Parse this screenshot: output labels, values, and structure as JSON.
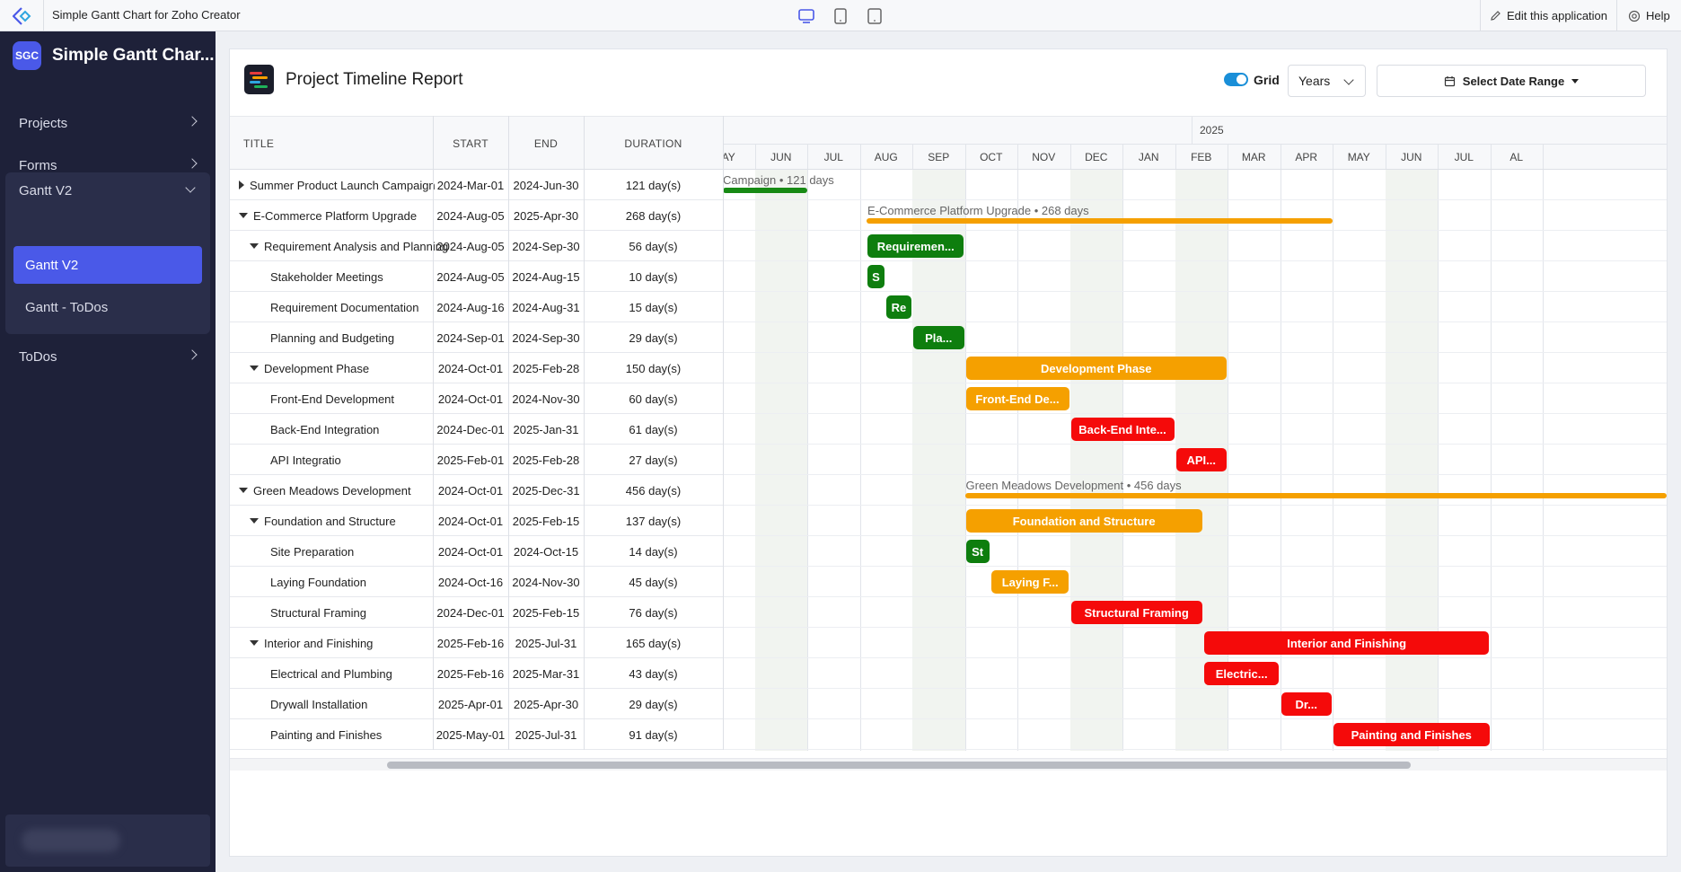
{
  "topbar": {
    "app_title": "Simple Gantt Chart for Zoho Creator",
    "edit_label": "Edit this application",
    "help_label": "Help"
  },
  "sidebar": {
    "badge": "SGC",
    "app_name": "Simple Gantt Char...",
    "items": [
      {
        "label": "Projects"
      },
      {
        "label": "Forms"
      },
      {
        "label": "Gantt V2"
      },
      {
        "label": "ToDos"
      }
    ],
    "sub_items": [
      {
        "label": "Gantt V2",
        "active": true
      },
      {
        "label": "Gantt - ToDos",
        "active": false
      }
    ]
  },
  "report": {
    "title": "Project Timeline Report",
    "grid_label": "Grid",
    "grid_on": true,
    "scale_select": "Years",
    "date_range_label": "Select Date Range"
  },
  "table": {
    "headers": {
      "title": "TITLE",
      "start": "START",
      "end": "END",
      "duration": "DURATION"
    },
    "rows": [
      {
        "title": "Summer Product Launch Campaign",
        "start": "2024-Mar-01",
        "end": "2024-Jun-30",
        "duration": "121 day(s)",
        "level": 0,
        "toggle": "collapsed"
      },
      {
        "title": "E-Commerce Platform Upgrade",
        "start": "2024-Aug-05",
        "end": "2025-Apr-30",
        "duration": "268 day(s)",
        "level": 0,
        "toggle": "expanded"
      },
      {
        "title": "Requirement Analysis and Planning",
        "start": "2024-Aug-05",
        "end": "2024-Sep-30",
        "duration": "56 day(s)",
        "level": 1,
        "toggle": "expanded"
      },
      {
        "title": "Stakeholder Meetings",
        "start": "2024-Aug-05",
        "end": "2024-Aug-15",
        "duration": "10 day(s)",
        "level": 2,
        "toggle": "none"
      },
      {
        "title": "Requirement Documentation",
        "start": "2024-Aug-16",
        "end": "2024-Aug-31",
        "duration": "15 day(s)",
        "level": 2,
        "toggle": "none"
      },
      {
        "title": "Planning and Budgeting",
        "start": "2024-Sep-01",
        "end": "2024-Sep-30",
        "duration": "29 day(s)",
        "level": 2,
        "toggle": "none"
      },
      {
        "title": "Development Phase",
        "start": "2024-Oct-01",
        "end": "2025-Feb-28",
        "duration": "150 day(s)",
        "level": 1,
        "toggle": "expanded"
      },
      {
        "title": "Front-End Development",
        "start": "2024-Oct-01",
        "end": "2024-Nov-30",
        "duration": "60 day(s)",
        "level": 2,
        "toggle": "none"
      },
      {
        "title": "Back-End Integration",
        "start": "2024-Dec-01",
        "end": "2025-Jan-31",
        "duration": "61 day(s)",
        "level": 2,
        "toggle": "none"
      },
      {
        "title": "API Integratio",
        "start": "2025-Feb-01",
        "end": "2025-Feb-28",
        "duration": "27 day(s)",
        "level": 2,
        "toggle": "none"
      },
      {
        "title": "Green Meadows Development",
        "start": "2024-Oct-01",
        "end": "2025-Dec-31",
        "duration": "456 day(s)",
        "level": 0,
        "toggle": "expanded"
      },
      {
        "title": "Foundation and Structure",
        "start": "2024-Oct-01",
        "end": "2025-Feb-15",
        "duration": "137 day(s)",
        "level": 1,
        "toggle": "expanded"
      },
      {
        "title": "Site Preparation",
        "start": "2024-Oct-01",
        "end": "2024-Oct-15",
        "duration": "14 day(s)",
        "level": 2,
        "toggle": "none"
      },
      {
        "title": "Laying Foundation",
        "start": "2024-Oct-16",
        "end": "2024-Nov-30",
        "duration": "45 day(s)",
        "level": 2,
        "toggle": "none"
      },
      {
        "title": "Structural Framing",
        "start": "2024-Dec-01",
        "end": "2025-Feb-15",
        "duration": "76 day(s)",
        "level": 2,
        "toggle": "none"
      },
      {
        "title": "Interior and Finishing",
        "start": "2025-Feb-16",
        "end": "2025-Jul-31",
        "duration": "165 day(s)",
        "level": 1,
        "toggle": "expanded"
      },
      {
        "title": "Electrical and Plumbing",
        "start": "2025-Feb-16",
        "end": "2025-Mar-31",
        "duration": "43 day(s)",
        "level": 2,
        "toggle": "none"
      },
      {
        "title": "Drywall Installation",
        "start": "2025-Apr-01",
        "end": "2025-Apr-30",
        "duration": "29 day(s)",
        "level": 2,
        "toggle": "none"
      },
      {
        "title": "Painting and Finishes",
        "start": "2025-May-01",
        "end": "2025-Jul-31",
        "duration": "91 day(s)",
        "level": 2,
        "toggle": "none"
      }
    ]
  },
  "timeline": {
    "year_label": "2025",
    "months": [
      "AY",
      "JUN",
      "JUL",
      "AUG",
      "SEP",
      "OCT",
      "NOV",
      "DEC",
      "JAN",
      "FEB",
      "MAR",
      "APR",
      "MAY",
      "JUN",
      "JUL",
      "AL"
    ],
    "summaries": [
      {
        "label": "Campaign • 121 days",
        "color": "#178a14"
      },
      {
        "label": "E-Commerce Platform Upgrade • 268 days",
        "color": "#f5a000"
      },
      {
        "label": "Green Meadows Development • 456 days",
        "color": "#f5a000"
      }
    ],
    "bars": [
      {
        "row": 2,
        "label": "Requiremen...",
        "color": "#0e7e0e"
      },
      {
        "row": 3,
        "label": "S",
        "color": "#0e7e0e"
      },
      {
        "row": 4,
        "label": "Re",
        "color": "#0e7e0e"
      },
      {
        "row": 5,
        "label": "Pla...",
        "color": "#0e7e0e"
      },
      {
        "row": 6,
        "label": "Development Phase",
        "color": "#f5a000"
      },
      {
        "row": 7,
        "label": "Front-End De...",
        "color": "#f5a000"
      },
      {
        "row": 8,
        "label": "Back-End Inte...",
        "color": "#f50a0a"
      },
      {
        "row": 9,
        "label": "API...",
        "color": "#f50a0a"
      },
      {
        "row": 11,
        "label": "Foundation and Structure",
        "color": "#f5a000"
      },
      {
        "row": 12,
        "label": "St",
        "color": "#0e7e0e"
      },
      {
        "row": 13,
        "label": "Laying F...",
        "color": "#f5a000"
      },
      {
        "row": 14,
        "label": "Structural Framing",
        "color": "#f50a0a"
      },
      {
        "row": 15,
        "label": "Interior and Finishing",
        "color": "#f50a0a"
      },
      {
        "row": 16,
        "label": "Electric...",
        "color": "#f50a0a"
      },
      {
        "row": 17,
        "label": "Dr...",
        "color": "#f50a0a"
      },
      {
        "row": 18,
        "label": "Painting and Finishes",
        "color": "#f50a0a"
      }
    ]
  }
}
